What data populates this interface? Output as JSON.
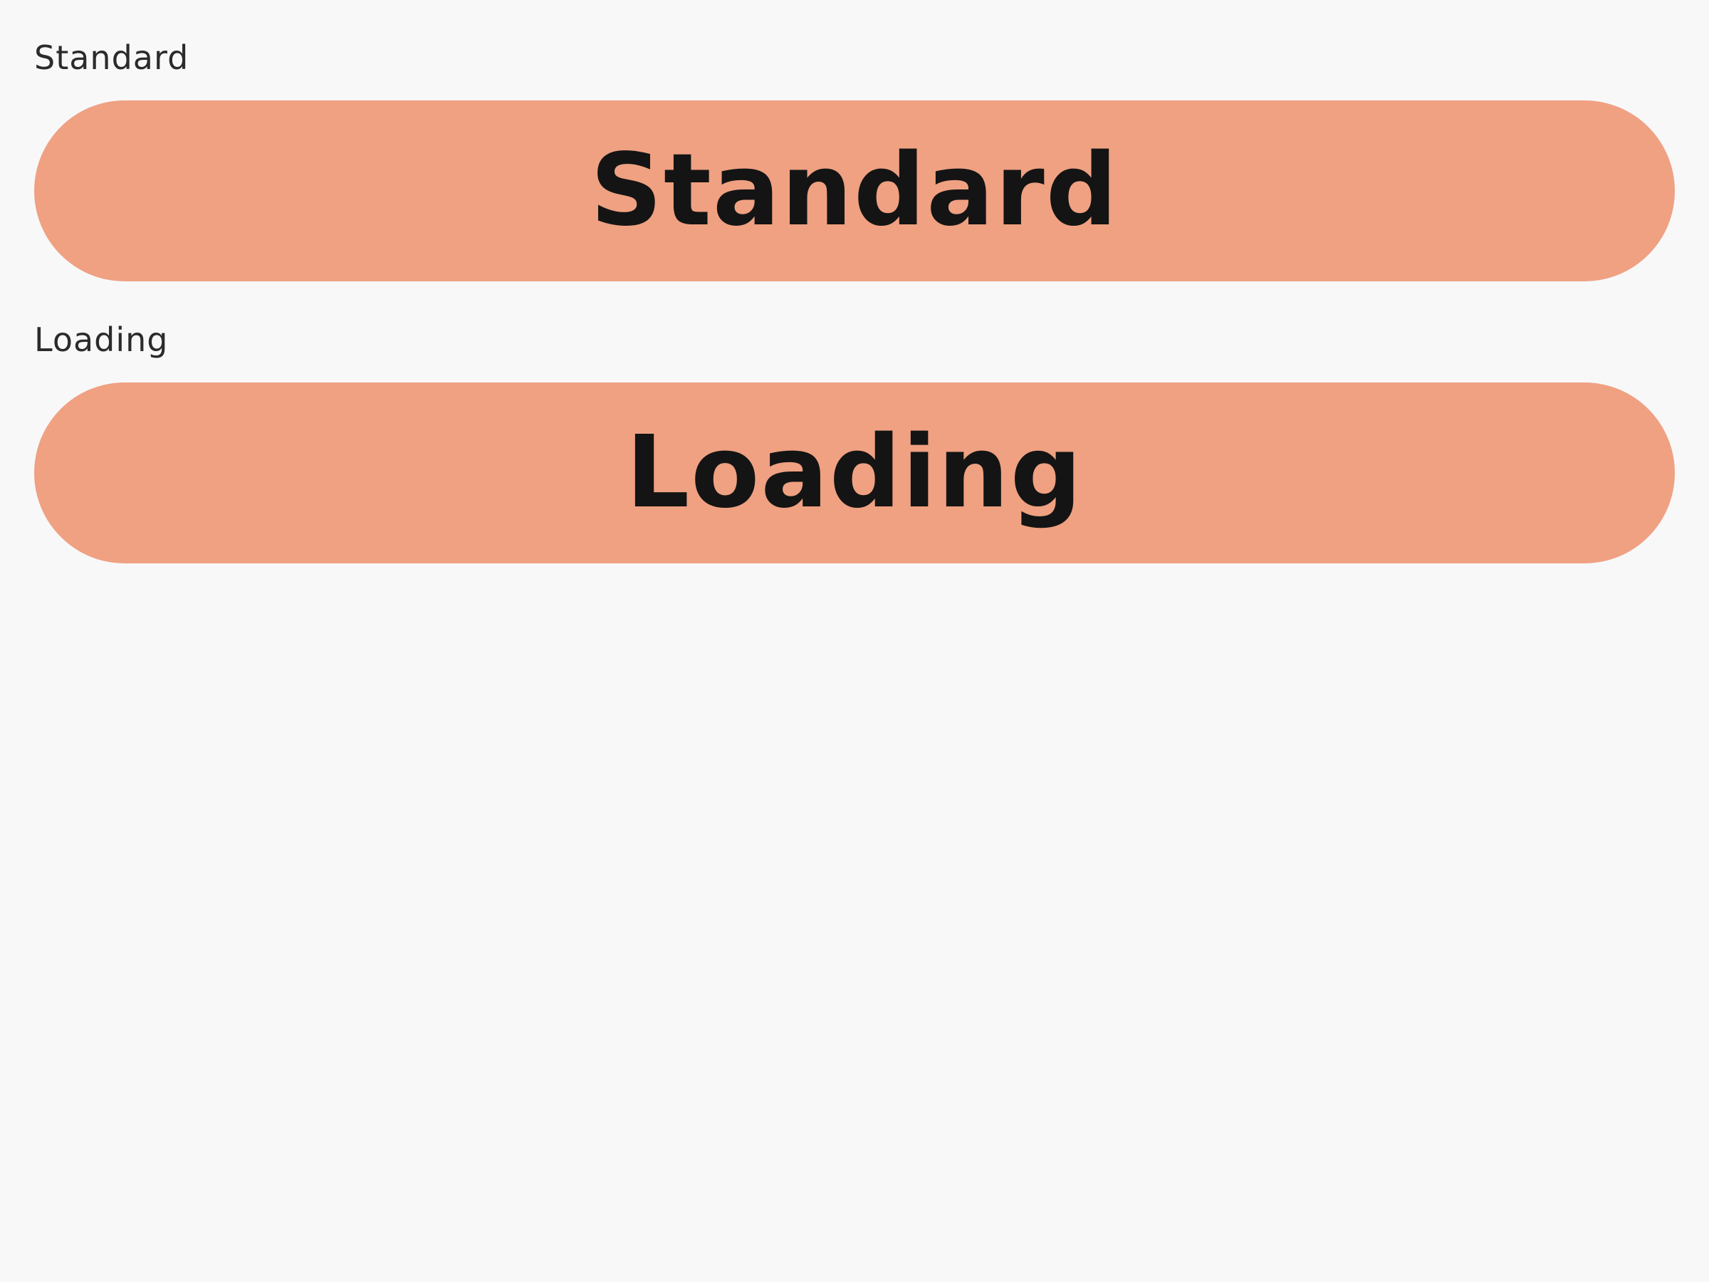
{
  "sections": [
    {
      "label": "Standard",
      "button_label": "Standard"
    },
    {
      "label": "Loading",
      "button_label": "Loading"
    }
  ],
  "colors": {
    "background": "#f8f8f9",
    "button_fill": "#efa182",
    "button_text": "#141414",
    "label_text": "#2b2b2b"
  }
}
